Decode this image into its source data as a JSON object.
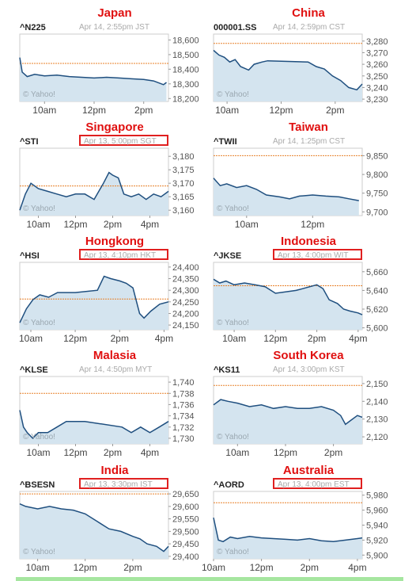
{
  "watermark": "© Yahoo!",
  "colors": {
    "line": "#1f4f7f",
    "fill": "#d4e4ef",
    "ref": "#e8812a",
    "title": "#e01010",
    "box": "#e02020"
  },
  "panels": [
    {
      "id": "japan",
      "country": "Japan",
      "symbol": "^N225",
      "timestamp": "Apr 14, 2:55pm JST",
      "boxed": false
    },
    {
      "id": "china",
      "country": "China",
      "symbol": "000001.SS",
      "timestamp": "Apr 14, 2:59pm CST",
      "boxed": false
    },
    {
      "id": "singapore",
      "country": "Singapore",
      "symbol": "^STI",
      "timestamp": "Apr 13, 5:00pm SGT",
      "boxed": true
    },
    {
      "id": "taiwan",
      "country": "Taiwan",
      "symbol": "^TWII",
      "timestamp": "Apr 14, 1:25pm CST",
      "boxed": false
    },
    {
      "id": "hongkong",
      "country": "Hongkong",
      "symbol": "^HSI",
      "timestamp": "Apr 13, 4:10pm HKT",
      "boxed": true
    },
    {
      "id": "indonesia",
      "country": "Indonesia",
      "symbol": "^JKSE",
      "timestamp": "Apr 13, 4:00pm WIT",
      "boxed": true
    },
    {
      "id": "malaysia",
      "country": "Malasia",
      "symbol": "^KLSE",
      "timestamp": "Apr 14, 4:50pm MYT",
      "boxed": false
    },
    {
      "id": "southkorea",
      "country": "South Korea",
      "symbol": "^KS11",
      "timestamp": "Apr 14, 3:00pm KST",
      "boxed": false
    },
    {
      "id": "india",
      "country": "India",
      "symbol": "^BSESN",
      "timestamp": "Apr 13, 3:30pm IST",
      "boxed": true
    },
    {
      "id": "australia",
      "country": "Australia",
      "symbol": "^AORD",
      "timestamp": "Apr 13, 4:00pm EST",
      "boxed": true
    }
  ],
  "chart_data": [
    {
      "id": "japan",
      "type": "area",
      "ylim": [
        18180,
        18640
      ],
      "yticks": [
        18600,
        18500,
        18400,
        18300,
        18200
      ],
      "ytick_labels": [
        "18,600",
        "18,500",
        "18,400",
        "18,300",
        "18,200"
      ],
      "xlim": [
        9,
        15
      ],
      "xticks": [
        10,
        12,
        14
      ],
      "xtick_labels": [
        "10am",
        "12pm",
        "2pm"
      ],
      "prev_close": 18440,
      "x": [
        9,
        9.1,
        9.3,
        9.6,
        10,
        10.5,
        11,
        11.5,
        12,
        12.5,
        13,
        13.5,
        14,
        14.4,
        14.8,
        14.92
      ],
      "y": [
        18480,
        18380,
        18350,
        18365,
        18355,
        18360,
        18350,
        18345,
        18340,
        18345,
        18340,
        18335,
        18330,
        18320,
        18295,
        18310
      ]
    },
    {
      "id": "china",
      "type": "area",
      "ylim": [
        3228,
        3286
      ],
      "yticks": [
        3280,
        3270,
        3260,
        3250,
        3240,
        3230
      ],
      "ytick_labels": [
        "3,280",
        "3,270",
        "3,260",
        "3,250",
        "3,240",
        "3,230"
      ],
      "xlim": [
        9.5,
        15
      ],
      "xticks": [
        10,
        12,
        14
      ],
      "xtick_labels": [
        "10am",
        "12pm",
        "2pm"
      ],
      "prev_close": 3278,
      "x": [
        9.5,
        9.7,
        9.9,
        10.1,
        10.3,
        10.5,
        10.8,
        11,
        11.3,
        11.5,
        13,
        13.3,
        13.6,
        13.9,
        14.2,
        14.5,
        14.8,
        15
      ],
      "y": [
        3272,
        3268,
        3266,
        3262,
        3264,
        3258,
        3255,
        3260,
        3262,
        3263,
        3262,
        3258,
        3256,
        3250,
        3246,
        3240,
        3238,
        3243
      ]
    },
    {
      "id": "singapore",
      "type": "area",
      "ylim": [
        3158,
        3183
      ],
      "yticks": [
        3180,
        3175,
        3170,
        3165,
        3160
      ],
      "ytick_labels": [
        "3,180",
        "3,175",
        "3,170",
        "3,165",
        "3,160"
      ],
      "xlim": [
        9,
        17
      ],
      "xticks": [
        10,
        12,
        14,
        16
      ],
      "xtick_labels": [
        "10am",
        "12pm",
        "2pm",
        "4pm"
      ],
      "prev_close": 3169,
      "x": [
        9,
        9.3,
        9.6,
        10,
        10.5,
        11,
        11.5,
        12,
        12.5,
        13,
        13.5,
        13.8,
        14,
        14.3,
        14.6,
        15,
        15.4,
        15.8,
        16.2,
        16.6,
        17
      ],
      "y": [
        3160,
        3166,
        3170,
        3168,
        3167,
        3166,
        3165,
        3166,
        3166,
        3164,
        3170,
        3174,
        3173,
        3172,
        3166,
        3165,
        3166,
        3164,
        3166,
        3165,
        3167
      ]
    },
    {
      "id": "taiwan",
      "type": "area",
      "ylim": [
        9690,
        9870
      ],
      "yticks": [
        9850,
        9800,
        9750,
        9700
      ],
      "ytick_labels": [
        "9,850",
        "9,800",
        "9,750",
        "9,700"
      ],
      "xlim": [
        9,
        13.5
      ],
      "xticks": [
        10,
        12
      ],
      "xtick_labels": [
        "10am",
        "12pm"
      ],
      "prev_close": 9850,
      "x": [
        9,
        9.2,
        9.4,
        9.7,
        10,
        10.3,
        10.6,
        11,
        11.3,
        11.6,
        12,
        12.4,
        12.8,
        13.1,
        13.4
      ],
      "y": [
        9790,
        9770,
        9775,
        9765,
        9770,
        9760,
        9745,
        9740,
        9735,
        9742,
        9745,
        9742,
        9740,
        9735,
        9730
      ]
    },
    {
      "id": "hongkong",
      "type": "area",
      "ylim": [
        24130,
        24420
      ],
      "yticks": [
        24400,
        24350,
        24300,
        24250,
        24200,
        24150
      ],
      "ytick_labels": [
        "24,400",
        "24,350",
        "24,300",
        "24,250",
        "24,200",
        "24,150"
      ],
      "xlim": [
        9.5,
        16.2
      ],
      "xticks": [
        10,
        12,
        14,
        16
      ],
      "xtick_labels": [
        "10am",
        "12pm",
        "2pm",
        "4pm"
      ],
      "prev_close": 24262,
      "x": [
        9.5,
        9.8,
        10.1,
        10.4,
        10.8,
        11.2,
        12,
        13,
        13.3,
        13.6,
        14,
        14.3,
        14.6,
        14.9,
        15.1,
        15.4,
        15.8,
        16.2
      ],
      "y": [
        24160,
        24220,
        24260,
        24280,
        24270,
        24290,
        24290,
        24300,
        24360,
        24350,
        24340,
        24330,
        24310,
        24200,
        24180,
        24210,
        24240,
        24250
      ]
    },
    {
      "id": "indonesia",
      "type": "area",
      "ylim": [
        5598,
        5670
      ],
      "yticks": [
        5660,
        5640,
        5620,
        5600
      ],
      "ytick_labels": [
        "5,660",
        "5,640",
        "5,620",
        "5,600"
      ],
      "xlim": [
        9,
        16.2
      ],
      "xticks": [
        10,
        12,
        14,
        16
      ],
      "xtick_labels": [
        "10am",
        "12pm",
        "2pm",
        "4pm"
      ],
      "prev_close": 5645,
      "x": [
        9,
        9.3,
        9.6,
        10,
        10.5,
        11,
        11.5,
        12,
        13,
        14,
        14.3,
        14.6,
        15,
        15.3,
        15.6,
        16,
        16.2
      ],
      "y": [
        5652,
        5648,
        5650,
        5646,
        5648,
        5646,
        5644,
        5637,
        5640,
        5646,
        5642,
        5630,
        5626,
        5620,
        5618,
        5616,
        5614
      ]
    },
    {
      "id": "malaysia",
      "type": "area",
      "ylim": [
        1729,
        1741
      ],
      "yticks": [
        1740,
        1738,
        1736,
        1734,
        1732,
        1730
      ],
      "ytick_labels": [
        "1,740",
        "1,738",
        "1,736",
        "1,734",
        "1,732",
        "1,730"
      ],
      "xlim": [
        9,
        17
      ],
      "xticks": [
        10,
        12,
        14,
        16
      ],
      "xtick_labels": [
        "10am",
        "12pm",
        "2pm",
        "4pm"
      ],
      "prev_close": 1738,
      "x": [
        9,
        9.2,
        9.4,
        9.7,
        10,
        10.5,
        11,
        11.5,
        12.5,
        14.5,
        15,
        15.5,
        16,
        16.5,
        17
      ],
      "y": [
        1735,
        1732,
        1731,
        1730,
        1731,
        1731,
        1732,
        1733,
        1733,
        1732,
        1731,
        1732,
        1731,
        1732,
        1733
      ]
    },
    {
      "id": "southkorea",
      "type": "area",
      "ylim": [
        2116,
        2154
      ],
      "yticks": [
        2150,
        2140,
        2130,
        2120
      ],
      "ytick_labels": [
        "2,150",
        "2,140",
        "2,130",
        "2,120"
      ],
      "xlim": [
        9,
        15.2
      ],
      "xticks": [
        10,
        12,
        14
      ],
      "xtick_labels": [
        "10am",
        "12pm",
        "2pm"
      ],
      "prev_close": 2149,
      "x": [
        9,
        9.3,
        9.6,
        10,
        10.5,
        11,
        11.5,
        12,
        12.5,
        13,
        13.5,
        14,
        14.3,
        14.5,
        14.7,
        15,
        15.2
      ],
      "y": [
        2138,
        2141,
        2140,
        2139,
        2137,
        2138,
        2136,
        2137,
        2136,
        2136,
        2137,
        2135,
        2132,
        2127,
        2129,
        2132,
        2131
      ]
    },
    {
      "id": "india",
      "type": "area",
      "ylim": [
        29390,
        29660
      ],
      "yticks": [
        29650,
        29600,
        29550,
        29500,
        29450,
        29400
      ],
      "ytick_labels": [
        "29,650",
        "29,600",
        "29,550",
        "29,500",
        "29,450",
        "29,400"
      ],
      "xlim": [
        9.25,
        15.5
      ],
      "xticks": [
        10,
        12,
        14
      ],
      "xtick_labels": [
        "10am",
        "12pm",
        "2pm"
      ],
      "prev_close": 29650,
      "x": [
        9.25,
        9.5,
        10,
        10.5,
        11,
        11.5,
        12,
        12.5,
        13,
        13.5,
        14,
        14.3,
        14.6,
        15,
        15.3,
        15.5
      ],
      "y": [
        29610,
        29600,
        29590,
        29600,
        29590,
        29585,
        29570,
        29540,
        29510,
        29500,
        29480,
        29470,
        29450,
        29440,
        29420,
        29440
      ]
    },
    {
      "id": "australia",
      "type": "area",
      "ylim": [
        5895,
        5985
      ],
      "yticks": [
        5980,
        5960,
        5940,
        5920,
        5900
      ],
      "ytick_labels": [
        "5,980",
        "5,960",
        "5,940",
        "5,920",
        "5,900"
      ],
      "xlim": [
        10,
        16.2
      ],
      "xticks": [
        10,
        12,
        14,
        16
      ],
      "xtick_labels": [
        "10am",
        "12pm",
        "2pm",
        "4pm"
      ],
      "prev_close": 5970,
      "x": [
        10,
        10.2,
        10.4,
        10.7,
        11,
        11.5,
        12,
        12.5,
        13,
        13.5,
        14,
        14.5,
        15,
        15.5,
        16,
        16.2
      ],
      "y": [
        5950,
        5920,
        5918,
        5924,
        5922,
        5925,
        5923,
        5922,
        5921,
        5920,
        5922,
        5919,
        5918,
        5920,
        5922,
        5923
      ]
    }
  ]
}
